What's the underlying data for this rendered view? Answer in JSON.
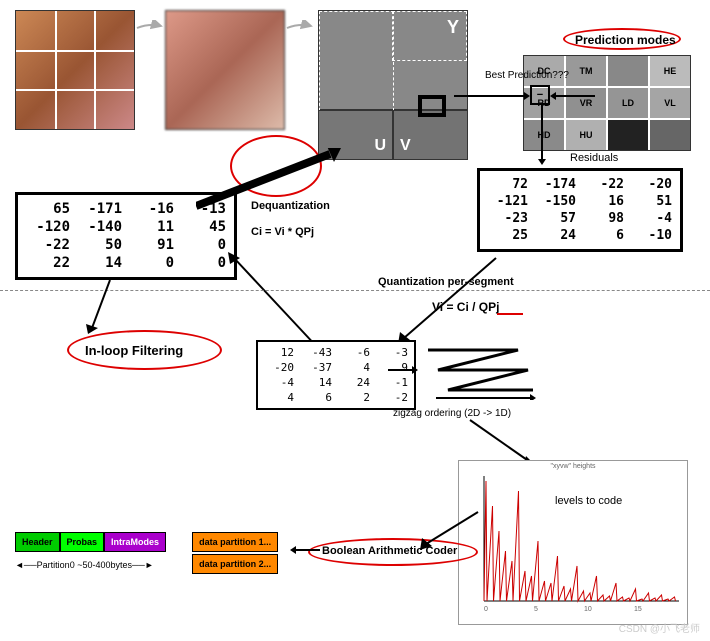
{
  "images": {
    "lena_size": 120,
    "block_size": 120,
    "yuv_size": 150
  },
  "yuv_labels": {
    "y": "Y",
    "u": "U",
    "v": "V"
  },
  "prediction_modes": {
    "title": "Prediction modes",
    "best_label": "Best Prediction???",
    "cells": [
      "DC",
      "TM",
      "",
      "HE",
      "RD",
      "VR",
      "LD",
      "VL",
      "HD",
      "HU",
      "",
      ""
    ]
  },
  "residuals": {
    "label": "Residuals",
    "data": [
      [
        72,
        -174,
        -22,
        -20
      ],
      [
        -121,
        -150,
        16,
        51
      ],
      [
        -23,
        57,
        98,
        -4
      ],
      [
        25,
        24,
        6,
        -10
      ]
    ]
  },
  "dequantized": {
    "data": [
      [
        65,
        -171,
        -16,
        -13
      ],
      [
        -120,
        -140,
        11,
        45
      ],
      [
        -22,
        50,
        91,
        0
      ],
      [
        22,
        14,
        0,
        0
      ]
    ]
  },
  "quantized": {
    "data": [
      [
        12,
        -43,
        -6,
        -3
      ],
      [
        -20,
        -37,
        4,
        9
      ],
      [
        -4,
        14,
        24,
        -1
      ],
      [
        4,
        6,
        2,
        -2
      ]
    ]
  },
  "labels": {
    "dequantization": "Dequantization",
    "deq_formula": "Ci = Vi * QPj",
    "quant_label": "Quantization per-segment",
    "quant_formula": "Vi = Ci / QPj",
    "quant_formula_qpj": "QPj",
    "inloop": "In-loop Filtering",
    "zigzag": "zigzag ordering   (2D -> 1D)",
    "levels": "levels to code",
    "boolean": "Boolean Arithmetic Coder",
    "chart_title": "\"xyvw\" heights"
  },
  "bitstream": {
    "header": "Header",
    "probas": "Probas",
    "intra": "IntraModes",
    "part1": "data partition 1...",
    "part2": "data partition 2...",
    "caption": "Partition0 ~50-400bytes",
    "colors": {
      "header": "#00cc00",
      "probas": "#00ff00",
      "intra": "#aa00cc",
      "data": "#ff8800"
    }
  },
  "chart": {
    "peaks": [
      120,
      95,
      70,
      50,
      40,
      110,
      30,
      25,
      60,
      20,
      18,
      45,
      15,
      12,
      35,
      10,
      8,
      25,
      6,
      5,
      18,
      4,
      3,
      12,
      2,
      8,
      3,
      6,
      2,
      4
    ],
    "color": "#cc0000",
    "xticks": [
      "0",
      "5",
      "10",
      "15"
    ]
  },
  "watermark": "CSDN @小飞老师"
}
